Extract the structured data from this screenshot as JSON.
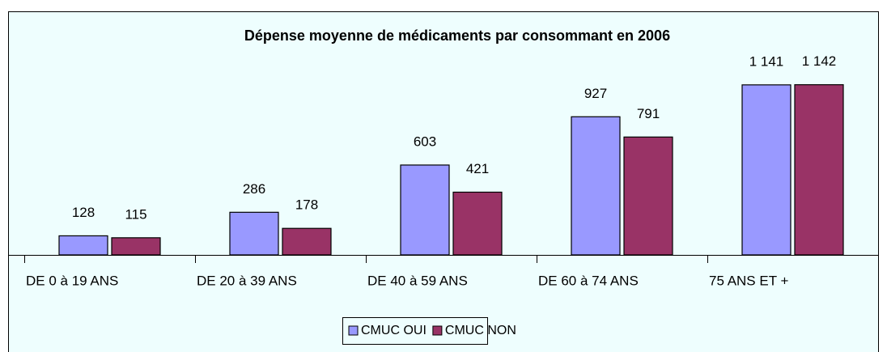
{
  "chart_data": {
    "type": "bar",
    "title": "Dépense moyenne de médicaments par consommant en 2006",
    "categories": [
      "DE 0 à 19 ANS",
      "DE 20 à 39 ANS",
      "DE 40 à 59 ANS",
      "DE 60 à 74 ANS",
      "75 ANS ET +"
    ],
    "series": [
      {
        "name": "CMUC OUI",
        "color": "#9999ff",
        "values": [
          128,
          286,
          603,
          927,
          1141
        ],
        "value_labels": [
          "128",
          "286",
          "603",
          "927",
          "1 141"
        ]
      },
      {
        "name": "CMUC NON",
        "color": "#993366",
        "values": [
          115,
          178,
          421,
          791,
          1142
        ],
        "value_labels": [
          "115",
          "178",
          "421",
          "791",
          "1 142"
        ]
      }
    ],
    "ylim": [
      0,
      1200
    ]
  }
}
